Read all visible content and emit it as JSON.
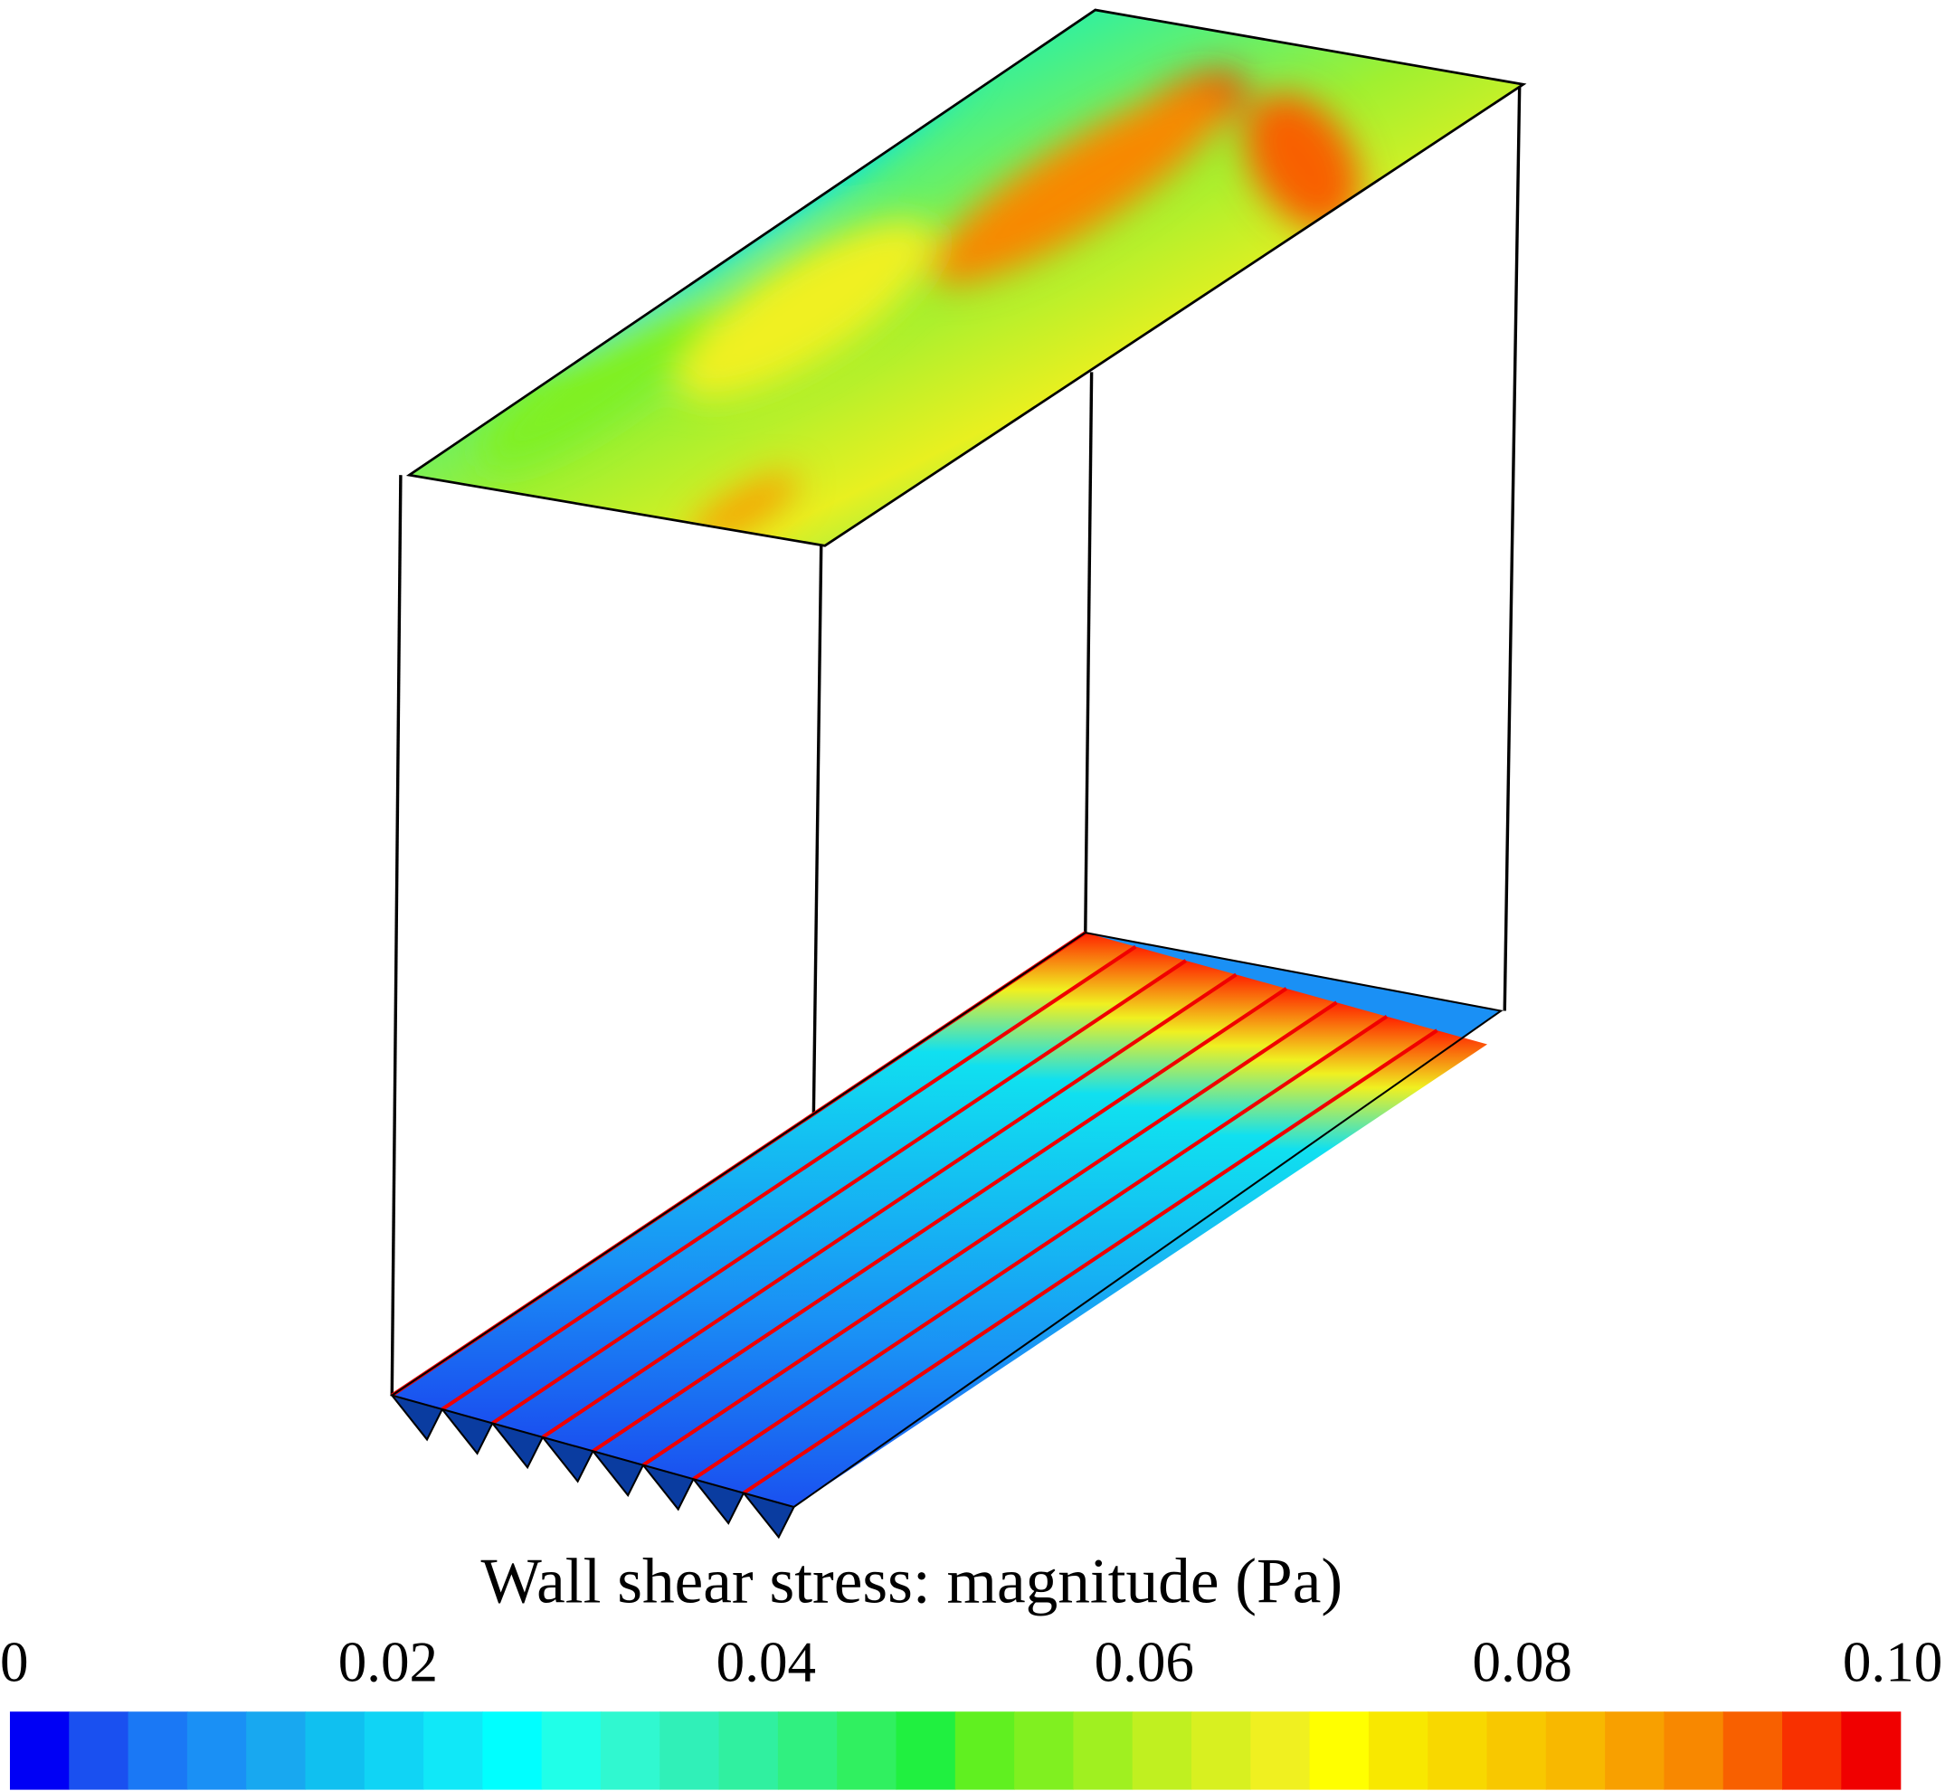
{
  "chart_data": {
    "type": "colorbar",
    "title": "Wall shear stress: magnitude (Pa)",
    "xlim": [
      0,
      0.1
    ],
    "xticks": [
      0,
      0.02,
      0.04,
      0.06,
      0.08,
      {
        "value": 0.1,
        "label": "0.10"
      }
    ],
    "colors": [
      "#0000f5",
      "#1a50f0",
      "#1a78f5",
      "#1a90f5",
      "#18a8f0",
      "#10c0f0",
      "#10d4f5",
      "#10e8f8",
      "#00ffff",
      "#20ffe8",
      "#30f8d0",
      "#30f0b8",
      "#30f0a0",
      "#30f080",
      "#30f060",
      "#20f040",
      "#60f020",
      "#80f020",
      "#a0f020",
      "#c0f020",
      "#d8f020",
      "#f0f020",
      "#ffff00",
      "#f8e800",
      "#f8d800",
      "#f8c800",
      "#f8b800",
      "#f8a000",
      "#f88800",
      "#f86000",
      "#f83000",
      "#f00000"
    ]
  }
}
